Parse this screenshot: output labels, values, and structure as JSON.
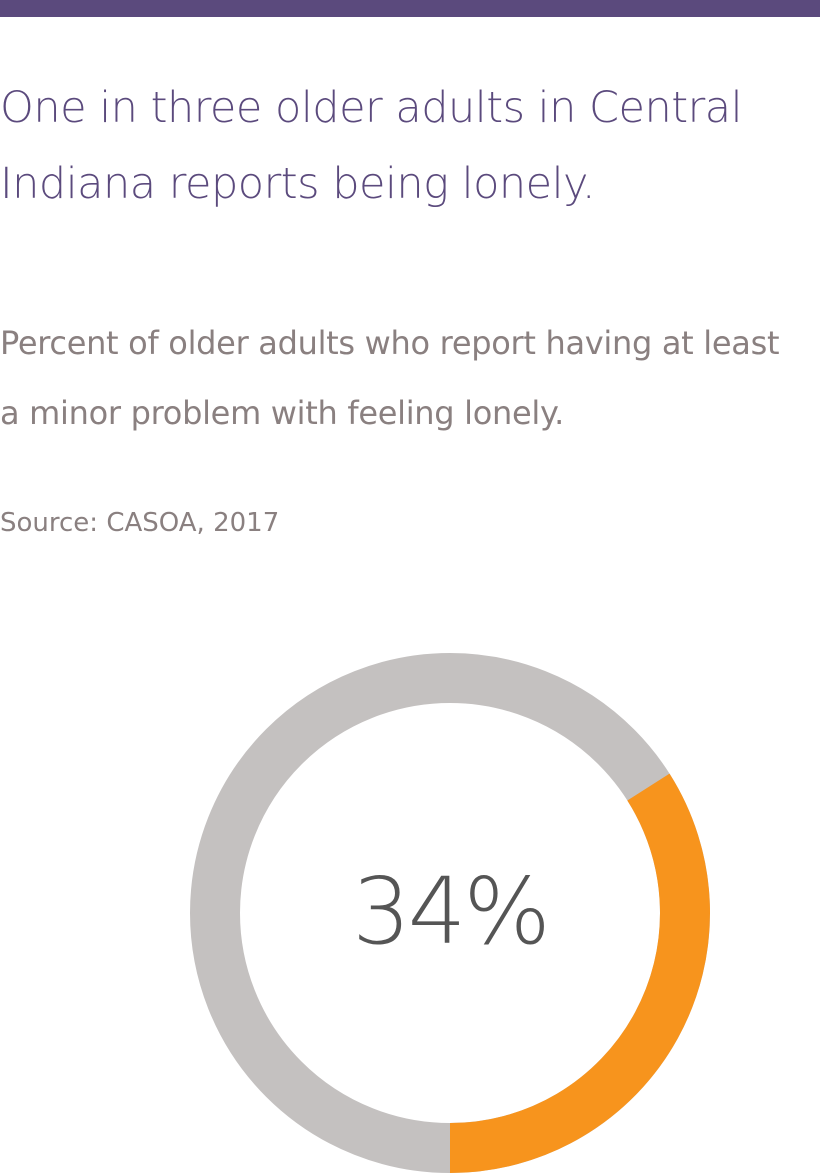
{
  "chart_data": {
    "type": "donut",
    "title": "One in three older adults in Central Indiana reports being lonely.",
    "subtitle": "Percent of older adults who report having at least a minor problem with feeling lonely.",
    "source": "Source: CASOA, 2017",
    "values": [
      34
    ],
    "value_labels": [
      "34%"
    ],
    "color": "#f7941d",
    "track_color": "#c4c1c0",
    "ylim": [
      0,
      100
    ]
  }
}
